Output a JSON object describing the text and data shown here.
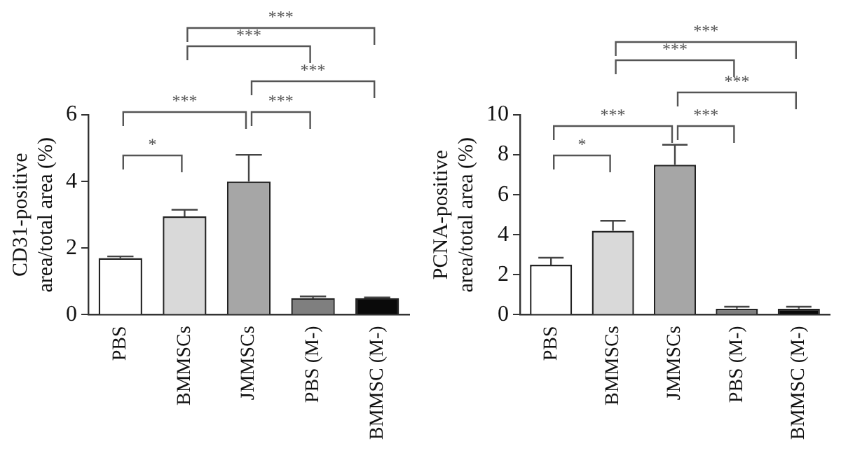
{
  "chart_data": [
    {
      "type": "bar",
      "ylabel": "CD31-positive\narea/total area (%)",
      "categories": [
        "PBS",
        "BMMSCs",
        "JMMSCs",
        "PBS (M-)",
        "BMMSC (M-)"
      ],
      "values": [
        1.7,
        2.95,
        4.0,
        0.5,
        0.5
      ],
      "errors": [
        [
          1.7,
          1.75
        ],
        [
          2.95,
          3.15
        ],
        [
          4.0,
          4.8
        ],
        [
          0.5,
          0.55
        ],
        [
          0.5,
          0.52
        ]
      ],
      "colors": [
        "#ffffff",
        "#d9d9d9",
        "#a6a6a6",
        "#7f7f7f",
        "#0a0a0a"
      ],
      "ylim": [
        0,
        6
      ],
      "yticks": [
        0,
        2,
        4,
        6
      ],
      "grid": false,
      "legend": false,
      "annotations": [
        "***",
        "***",
        "***",
        "***",
        "***",
        "*"
      ]
    },
    {
      "type": "bar",
      "ylabel": "PCNA-positive\narea/total area (%)",
      "categories": [
        "PBS",
        "BMMSCs",
        "JMMSCs",
        "PBS (M-)",
        "BMMSC (M-)"
      ],
      "values": [
        2.5,
        4.2,
        7.5,
        0.3,
        0.3
      ],
      "errors": [
        [
          2.5,
          2.85
        ],
        [
          4.2,
          4.7
        ],
        [
          7.5,
          8.5
        ],
        [
          0.3,
          0.4
        ],
        [
          0.3,
          0.4
        ]
      ],
      "colors": [
        "#ffffff",
        "#d9d9d9",
        "#a6a6a6",
        "#7f7f7f",
        "#0a0a0a"
      ],
      "ylim": [
        0,
        10
      ],
      "yticks": [
        0,
        2,
        4,
        6,
        8,
        10
      ],
      "grid": false,
      "legend": false,
      "annotations": [
        "***",
        "***",
        "***",
        "***",
        "***",
        "*"
      ]
    }
  ]
}
